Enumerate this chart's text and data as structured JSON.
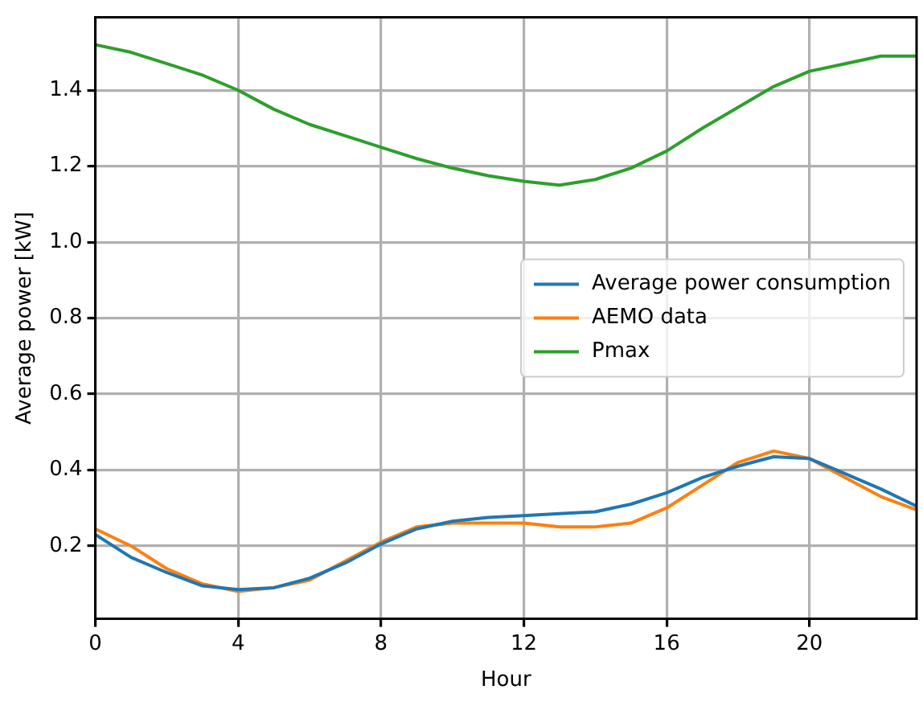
{
  "chart_data": {
    "type": "line",
    "xlabel": "Hour",
    "ylabel": "Average power [kW]",
    "x": [
      0,
      1,
      2,
      3,
      4,
      5,
      6,
      7,
      8,
      9,
      10,
      11,
      12,
      13,
      14,
      15,
      16,
      17,
      18,
      19,
      20,
      21,
      22,
      23
    ],
    "xlim": [
      0,
      23
    ],
    "xticks": [
      0,
      4,
      8,
      12,
      16,
      20
    ],
    "ylim": [
      0.008,
      1.592
    ],
    "yticks": [
      0.2,
      0.4,
      0.6,
      0.8,
      {
        "value": 1,
        "label": "1.0"
      },
      1.2,
      1.4
    ],
    "grid": true,
    "legend": "center right",
    "marker": "none",
    "line_style": "solid",
    "series": [
      {
        "name": "Average power consumption",
        "color": "#1f77b4",
        "values": [
          0.23,
          0.17,
          0.13,
          0.095,
          0.085,
          0.09,
          0.115,
          0.155,
          0.205,
          0.245,
          0.265,
          0.275,
          0.28,
          0.285,
          0.29,
          0.31,
          0.34,
          0.38,
          0.41,
          0.435,
          0.43,
          0.39,
          0.35,
          0.305
        ]
      },
      {
        "name": "AEMO data",
        "color": "#ff7f0e",
        "values": [
          0.245,
          0.2,
          0.14,
          0.1,
          0.08,
          0.09,
          0.11,
          0.16,
          0.21,
          0.25,
          0.26,
          0.26,
          0.26,
          0.25,
          0.25,
          0.26,
          0.3,
          0.36,
          0.42,
          0.45,
          0.43,
          0.38,
          0.33,
          0.295
        ]
      },
      {
        "name": "Pmax",
        "color": "#2ca02c",
        "values": [
          1.52,
          1.5,
          1.47,
          1.44,
          1.4,
          1.35,
          1.31,
          1.28,
          1.25,
          1.22,
          1.195,
          1.175,
          1.16,
          1.15,
          1.165,
          1.195,
          1.24,
          1.3,
          1.355,
          1.41,
          1.45,
          1.47,
          1.49,
          1.49
        ]
      }
    ]
  }
}
